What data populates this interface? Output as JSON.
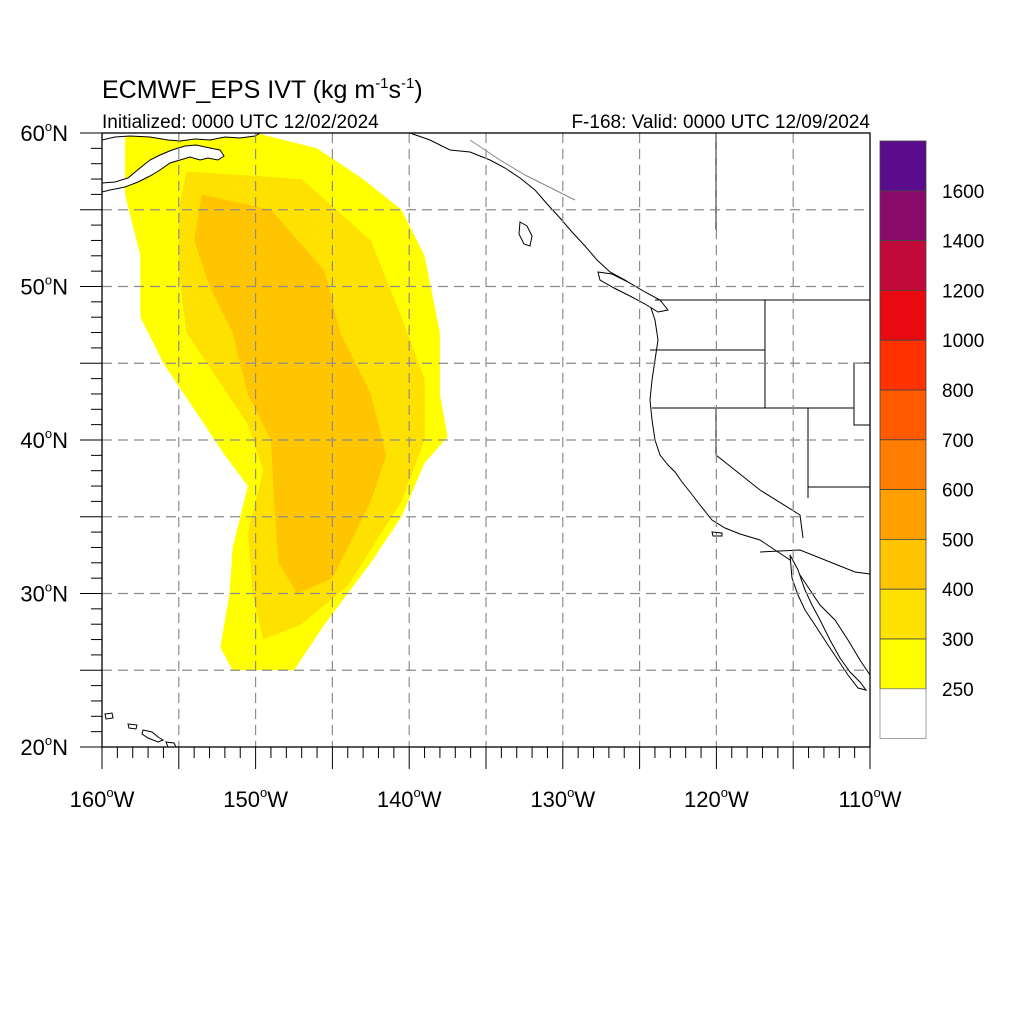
{
  "title": {
    "main": "ECMWF_EPS IVT (kg m",
    "unit_sup1": "-1",
    "unit_mid": "s",
    "unit_sup2": "-1",
    "unit_close": ")"
  },
  "initialized": "Initialized: 0000 UTC 12/02/2024",
  "valid": "F-168: Valid: 0000 UTC 12/09/2024",
  "map": {
    "projection": "lat-lon",
    "lon_range": [
      -160,
      -110
    ],
    "lat_range": [
      20,
      60
    ],
    "lat_ticks": [
      {
        "value": 60,
        "label": "60",
        "suffix": "N"
      },
      {
        "value": 50,
        "label": "50",
        "suffix": "N"
      },
      {
        "value": 40,
        "label": "40",
        "suffix": "N"
      },
      {
        "value": 30,
        "label": "30",
        "suffix": "N"
      },
      {
        "value": 20,
        "label": "20",
        "suffix": "N"
      }
    ],
    "lon_ticks": [
      {
        "value": -160,
        "label": "160",
        "suffix": "W"
      },
      {
        "value": -150,
        "label": "150",
        "suffix": "W"
      },
      {
        "value": -140,
        "label": "140",
        "suffix": "W"
      },
      {
        "value": -130,
        "label": "130",
        "suffix": "W"
      },
      {
        "value": -120,
        "label": "120",
        "suffix": "W"
      },
      {
        "value": -110,
        "label": "110",
        "suffix": "W"
      }
    ],
    "degree_symbol": "o",
    "grid_lines": "dashed every 5 degrees",
    "ivt_field": {
      "levels": [
        {
          "threshold": 250,
          "color": "#ffff00",
          "outline": [
            [
              -158.5,
              60
            ],
            [
              -150,
              60
            ],
            [
              -146,
              59
            ],
            [
              -143,
              57
            ],
            [
              -140.5,
              55
            ],
            [
              -139,
              52
            ],
            [
              -138,
              47
            ],
            [
              -138,
              43
            ],
            [
              -137.5,
              40.2
            ],
            [
              -139,
              38.5
            ],
            [
              -140.5,
              35
            ],
            [
              -142.5,
              32
            ],
            [
              -145.5,
              28
            ],
            [
              -147.5,
              25
            ],
            [
              -151.5,
              25
            ],
            [
              -152.3,
              26.5
            ],
            [
              -151.7,
              30
            ],
            [
              -151.5,
              33
            ],
            [
              -150.5,
              37
            ],
            [
              -152,
              39
            ],
            [
              -154,
              42
            ],
            [
              -156,
              45
            ],
            [
              -157.5,
              48
            ],
            [
              -157.5,
              52
            ],
            [
              -158.5,
              56
            ]
          ]
        },
        {
          "threshold": 300,
          "color": "#ffe100",
          "outline": [
            [
              -154.5,
              57.5
            ],
            [
              -147,
              57
            ],
            [
              -142.5,
              53
            ],
            [
              -140.5,
              48
            ],
            [
              -139,
              44
            ],
            [
              -139,
              40
            ],
            [
              -140.5,
              36
            ],
            [
              -144,
              30.5
            ],
            [
              -147,
              28
            ],
            [
              -149.5,
              27
            ],
            [
              -150.2,
              30
            ],
            [
              -150.5,
              34
            ],
            [
              -149.5,
              38
            ],
            [
              -150.5,
              41
            ],
            [
              -152.5,
              44
            ],
            [
              -154.5,
              47
            ],
            [
              -155,
              51
            ],
            [
              -155,
              55
            ]
          ]
        },
        {
          "threshold": 400,
          "color": "#ffc500",
          "outline": [
            [
              -153.5,
              56
            ],
            [
              -149,
              55
            ],
            [
              -145.5,
              51
            ],
            [
              -144.5,
              47
            ],
            [
              -142.5,
              43
            ],
            [
              -141.5,
              39
            ],
            [
              -142.5,
              36
            ],
            [
              -145,
              31
            ],
            [
              -147.3,
              30
            ],
            [
              -148.5,
              32
            ],
            [
              -148.8,
              36
            ],
            [
              -149,
              40
            ],
            [
              -150.5,
              43
            ],
            [
              -151.5,
              47
            ],
            [
              -153,
              50
            ],
            [
              -154,
              53
            ]
          ]
        }
      ]
    },
    "land_fill": "#ffffff",
    "line_color": "#000000"
  },
  "colorbar": {
    "labels": [
      "1600",
      "1400",
      "1200",
      "1000",
      "800",
      "700",
      "600",
      "500",
      "400",
      "300",
      "250"
    ],
    "bins": [
      {
        "color": "#5a0c8c"
      },
      {
        "color": "#8a0a6c"
      },
      {
        "color": "#c20a3a"
      },
      {
        "color": "#e80a10"
      },
      {
        "color": "#ff3200"
      },
      {
        "color": "#ff5a00"
      },
      {
        "color": "#ff7d00"
      },
      {
        "color": "#ffa000"
      },
      {
        "color": "#ffc500"
      },
      {
        "color": "#ffe100"
      },
      {
        "color": "#ffff00"
      },
      {
        "color": "#ffffff"
      }
    ]
  }
}
